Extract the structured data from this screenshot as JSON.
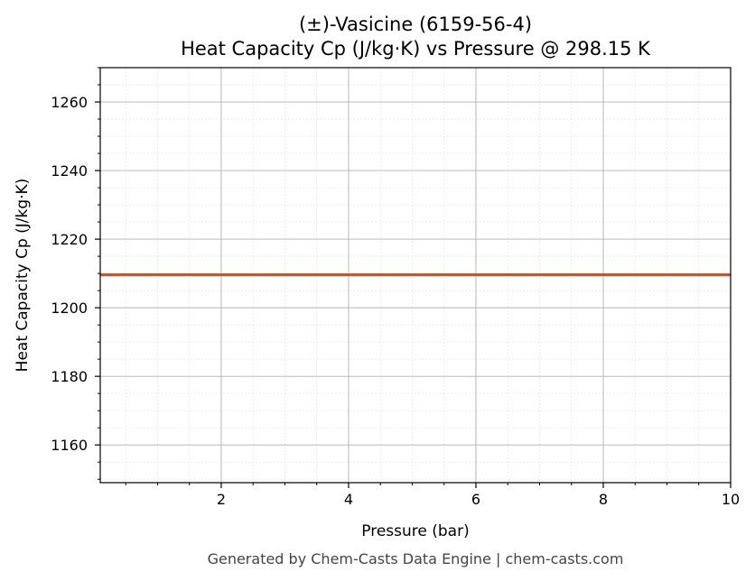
{
  "chart_data": {
    "type": "line",
    "title_line1": "(±)-Vasicine (6159-56-4)",
    "title_line2": "Heat Capacity Cp (J/kg·K) vs Pressure @ 298.15 K",
    "xlabel": "Pressure (bar)",
    "ylabel": "Heat Capacity Cp (J/kg·K)",
    "xlim": [
      0.1,
      10
    ],
    "ylim": [
      1149,
      1270
    ],
    "x_ticks": [
      2,
      4,
      6,
      8,
      10
    ],
    "y_ticks": [
      1160,
      1180,
      1200,
      1220,
      1240,
      1260
    ],
    "x_tick_labels": [
      "2",
      "4",
      "6",
      "8",
      "10"
    ],
    "y_tick_labels": [
      "1160",
      "1180",
      "1200",
      "1220",
      "1240",
      "1260"
    ],
    "grid": true,
    "minor_grid": true,
    "series": [
      {
        "color": "#c8552b",
        "x": [
          0.1,
          1,
          2,
          3,
          4,
          5,
          6,
          7,
          8,
          9,
          10
        ],
        "y": [
          1209.6,
          1209.6,
          1209.6,
          1209.6,
          1209.6,
          1209.6,
          1209.6,
          1209.6,
          1209.6,
          1209.6,
          1209.6
        ]
      }
    ]
  },
  "footer": {
    "text": "Generated by Chem-Casts Data Engine | chem-casts.com"
  }
}
